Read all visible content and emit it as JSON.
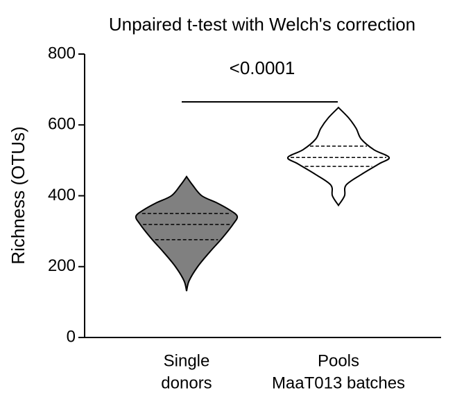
{
  "chart_data": {
    "type": "violin",
    "title": "Unpaired t-test with Welch's correction",
    "ylabel": "Richness (OTUs)",
    "annotation": "<0.0001",
    "categories": [
      [
        "Single",
        "donors"
      ],
      [
        "Pools",
        "MaaT013 batches"
      ]
    ],
    "ylim": [
      0,
      800
    ],
    "yticks": [
      0,
      200,
      400,
      600,
      800
    ],
    "series": [
      {
        "color": "#808080",
        "q1": 276,
        "median": 319,
        "q3": 350,
        "density": {
          "y": [
            131,
            160,
            200,
            240,
            280,
            320,
            342,
            360,
            380,
            400,
            430,
            454
          ],
          "width": [
            0,
            0.05,
            0.22,
            0.45,
            0.7,
            0.92,
            1.0,
            0.85,
            0.6,
            0.3,
            0.12,
            0
          ]
        }
      },
      {
        "color": "#ffffff",
        "q1": 483,
        "median": 508,
        "q3": 540,
        "density": {
          "y": [
            373,
            400,
            430,
            460,
            490,
            508,
            530,
            560,
            590,
            620,
            649
          ],
          "width": [
            0,
            0.12,
            0.15,
            0.45,
            0.8,
            1.0,
            0.7,
            0.45,
            0.35,
            0.2,
            0
          ]
        }
      }
    ]
  }
}
